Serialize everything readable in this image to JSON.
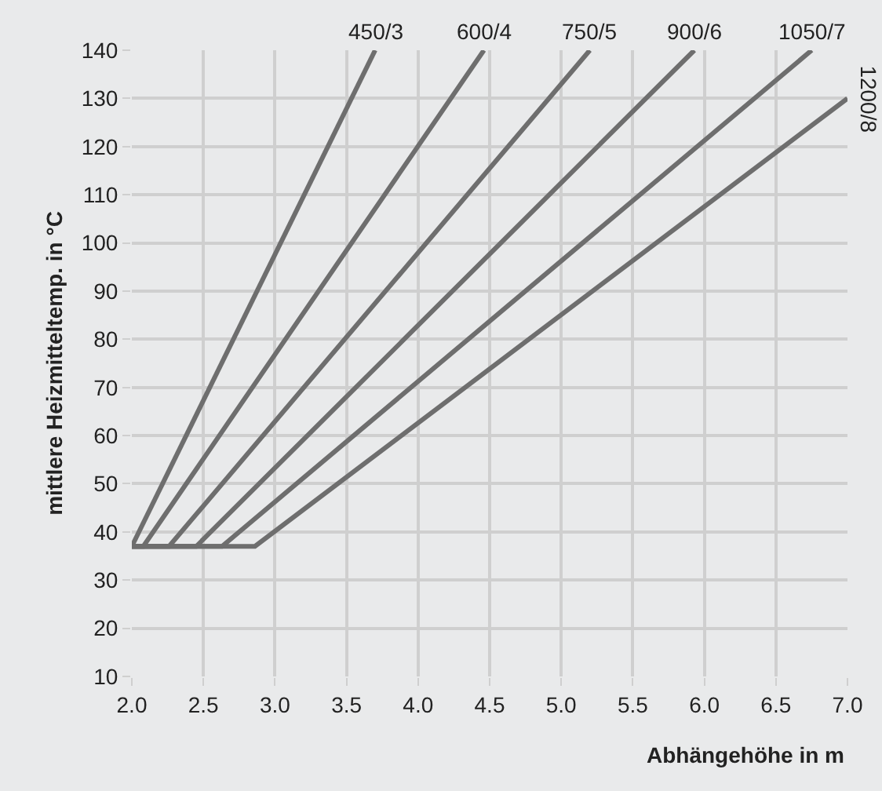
{
  "chart_data": {
    "type": "line",
    "xlabel": "Abhängehöhe in m",
    "ylabel": "mittlere Heizmitteltemp. in °C",
    "series": [
      {
        "name": "450/3",
        "color": "#6e6e6e",
        "x": [
          2.0,
          3.7
        ],
        "values": [
          37,
          140
        ]
      },
      {
        "name": "600/4",
        "color": "#6e6e6e",
        "x": [
          2.0,
          2.08,
          4.46
        ],
        "values": [
          37,
          37,
          140
        ]
      },
      {
        "name": "750/5",
        "color": "#6e6e6e",
        "x": [
          2.0,
          2.26,
          5.2
        ],
        "values": [
          37,
          37,
          140
        ]
      },
      {
        "name": "900/6",
        "color": "#6e6e6e",
        "x": [
          2.0,
          2.45,
          5.93
        ],
        "values": [
          37,
          37,
          140
        ]
      },
      {
        "name": "1050/7",
        "color": "#6e6e6e",
        "x": [
          2.0,
          2.63,
          6.75
        ],
        "values": [
          37,
          37,
          140
        ]
      },
      {
        "name": "1200/8",
        "color": "#6e6e6e",
        "x": [
          2.0,
          2.86,
          7.0
        ],
        "values": [
          37,
          37,
          130
        ]
      }
    ],
    "xlim": [
      2.0,
      7.0
    ],
    "xticks": [
      {
        "value": 2,
        "label": "2.0"
      },
      2.5,
      {
        "value": 3,
        "label": "3.0"
      },
      3.5,
      {
        "value": 4,
        "label": "4.0"
      },
      4.5,
      {
        "value": 5,
        "label": "5.0"
      },
      5.5,
      {
        "value": 6,
        "label": "6.0"
      },
      6.5,
      {
        "value": 7,
        "label": "7.0"
      }
    ],
    "ylim": [
      10,
      140
    ],
    "yticks": [
      10,
      20,
      30,
      40,
      50,
      60,
      70,
      80,
      90,
      100,
      110,
      120,
      130,
      140
    ],
    "grid": true,
    "legend": false,
    "marker": "none",
    "line_style": "solid"
  }
}
